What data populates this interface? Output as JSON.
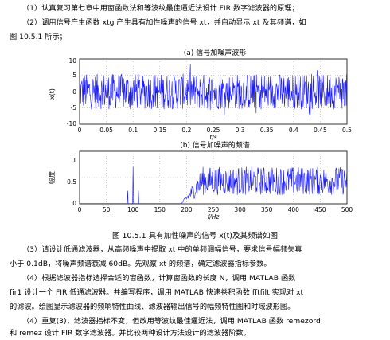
{
  "paragraphs": {
    "p1": "（1）认真复习第七章中用窗函数法和等波纹最佳逼近法设计 FIR 数字滤波器的原理；",
    "p2a": "（2）调用信号产生函数 xtg 产生具有加性噪声的信号 xt，并自动显示 xt 及其频谱，如",
    "p2b": "图 10.5.1 所示；",
    "p3a": "（3）请设计低通滤波器，从高频噪声中提取 xt 中的单频调幅信号，要求信号幅频失真",
    "p3b": "小于 0.1dB，将噪声频谱衰减 60dB。先观察 xt 的频谱，确定滤波器指标参数。",
    "p4a": "（4）根据滤波器指标选择合适的窗函数，计算窗函数的长度 N，调用 MATLAB 函数",
    "p4b": "fir1 设计一个 FIR 低通滤波器。并编写程序，调用 MATLAB 快速卷积函数 fftfilt 实现对 xt",
    "p4c": "的滤波。绘图显示滤波器的频响特性曲线、滤波器输出信号的幅频特性图和时域波形图。",
    "p5a": "（4）重复(3)，滤波器指标不变，但改用等波纹最佳逼近法，调用 MATLAB 函数 remezord",
    "p5b": "和 remez 设计 FIR 数字滤波器。并比较两种设计方法设计的滤波器阶数。"
  },
  "figure": {
    "caption": "图 10.5.1  具有加性噪声的信号 x(t)及其频谱如图",
    "plot1": {
      "title": "(a) 信号加噪声波形",
      "ylabel": "x(t)",
      "xlabel": "t/s",
      "xticks": [
        "0",
        "0.05",
        "0.1",
        "0.15",
        "0.2",
        "0.25",
        "0.3",
        "0.35",
        "0.4",
        "0.45",
        "0.5"
      ],
      "yticks": [
        "10",
        "5",
        "0",
        "-5",
        "-10"
      ]
    },
    "plot2": {
      "title": "(b) 信号加噪声的频谱",
      "ylabel": "幅度",
      "xlabel": "f/Hz",
      "xticks": [
        "0",
        "50",
        "100",
        "150",
        "200",
        "250",
        "300",
        "350",
        "400",
        "450",
        "500"
      ],
      "yticks": [
        "1",
        "0.5",
        "0"
      ]
    },
    "line_color": "#1a1aff"
  },
  "chart_data": [
    {
      "type": "line",
      "title": "(a) 信号加噪声波形",
      "xlabel": "t/s",
      "ylabel": "x(t)",
      "xlim": [
        0,
        0.5
      ],
      "ylim": [
        -10,
        10
      ],
      "grid": true,
      "description_values": "dense noisy waveform, amplitude mostly between -6 and 6 with peaks near ±9"
    },
    {
      "type": "line",
      "title": "(b) 信号加噪声的频谱",
      "xlabel": "f/Hz",
      "ylabel": "幅度",
      "xlim": [
        0,
        500
      ],
      "ylim": [
        0,
        1.2
      ],
      "grid": true,
      "peaks": [
        {
          "x": 90,
          "y": 0.3
        },
        {
          "x": 100,
          "y": 0.85
        },
        {
          "x": 110,
          "y": 0.3
        }
      ],
      "noise_band": {
        "start": 190,
        "end": 500,
        "level": 0.5
      }
    }
  ]
}
